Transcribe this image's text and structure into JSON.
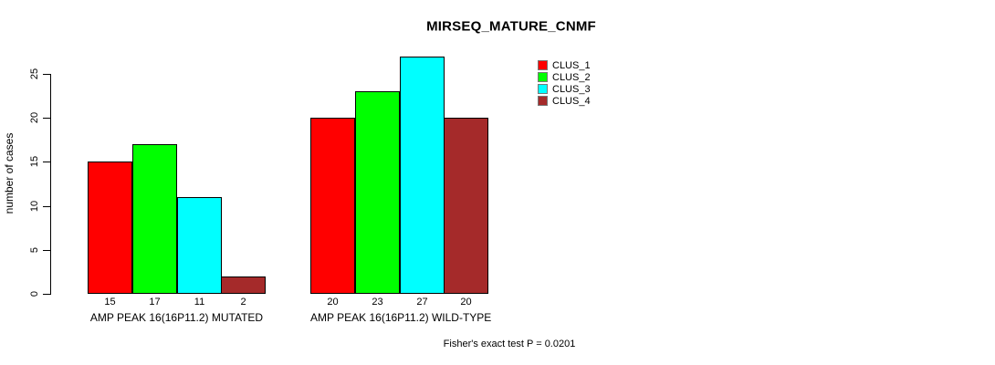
{
  "title": "MIRSEQ_MATURE_CNMF",
  "footer": "Fisher's exact test P = 0.0201",
  "chart_data": {
    "type": "bar",
    "title": "MIRSEQ_MATURE_CNMF",
    "ylabel": "number of cases",
    "xlabel": "",
    "categories": [
      "AMP PEAK 16(16P11.2) MUTATED",
      "AMP PEAK 16(16P11.2) WILD-TYPE"
    ],
    "series": [
      {
        "name": "CLUS_1",
        "color": "#ff0000",
        "values": [
          15,
          20
        ]
      },
      {
        "name": "CLUS_2",
        "color": "#00ff00",
        "values": [
          17,
          23
        ]
      },
      {
        "name": "CLUS_3",
        "color": "#00ffff",
        "values": [
          11,
          27
        ]
      },
      {
        "name": "CLUS_4",
        "color": "#a52a2a",
        "values": [
          2,
          20
        ]
      }
    ],
    "bar_value_labels": [
      [
        15,
        17,
        11,
        2
      ],
      [
        20,
        23,
        27,
        20
      ]
    ],
    "yticks": [
      0,
      5,
      10,
      15,
      20,
      25
    ],
    "ylim": [
      0,
      27
    ],
    "grid": false,
    "legend_position": "top-right",
    "annotation": "Fisher's exact test P = 0.0201"
  }
}
